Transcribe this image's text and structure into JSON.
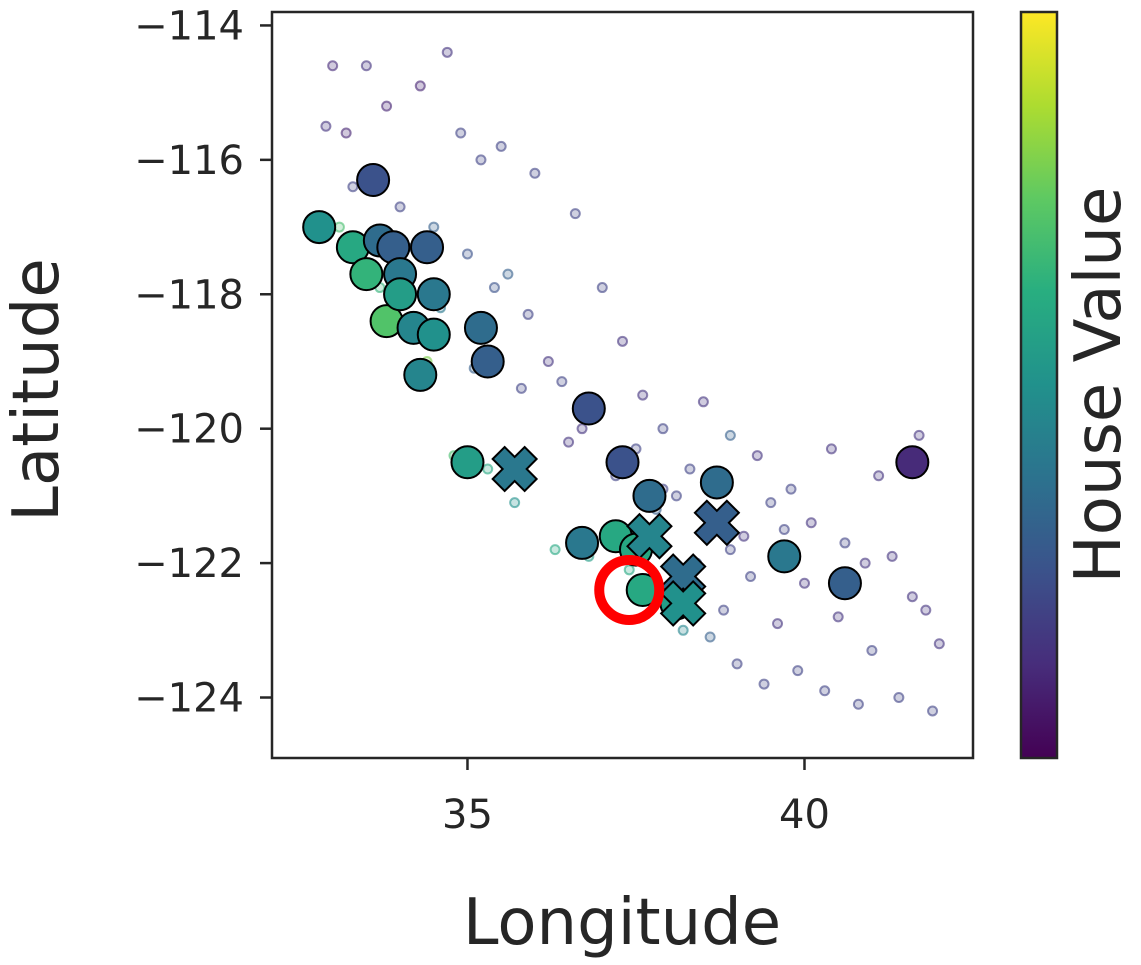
{
  "chart_data": {
    "type": "scatter",
    "title": "",
    "xlabel": "Longitude",
    "ylabel": "Latitude",
    "xlim": [
      32.1,
      42.5
    ],
    "ylim": [
      -124.9,
      -113.8
    ],
    "xticks": [
      35,
      40
    ],
    "xtick_labels": [
      "35",
      "40"
    ],
    "yticks": [
      -114,
      -116,
      -118,
      -120,
      -122,
      -124
    ],
    "ytick_labels": [
      "−114",
      "−116",
      "−118",
      "−120",
      "−122",
      "−124"
    ],
    "grid": false,
    "colorbar": {
      "label": "House Value",
      "colormap": "viridis",
      "stops": [
        "#440154",
        "#472d7b",
        "#3b528b",
        "#2c728e",
        "#21918c",
        "#28ae80",
        "#5ec962",
        "#addc30",
        "#fde725"
      ]
    },
    "series": [
      {
        "marker": "circle",
        "description": "faint background points (color = house value fraction)",
        "points": [
          {
            "x": 32.7,
            "y": -117.1,
            "v": 0.55
          },
          {
            "x": 32.9,
            "y": -115.5,
            "v": 0.15
          },
          {
            "x": 33.0,
            "y": -114.6,
            "v": 0.12
          },
          {
            "x": 33.1,
            "y": -117.0,
            "v": 0.7
          },
          {
            "x": 33.2,
            "y": -115.6,
            "v": 0.1
          },
          {
            "x": 33.3,
            "y": -116.4,
            "v": 0.2
          },
          {
            "x": 33.4,
            "y": -117.6,
            "v": 0.6
          },
          {
            "x": 33.5,
            "y": -114.6,
            "v": 0.15
          },
          {
            "x": 33.6,
            "y": -116.2,
            "v": 0.2
          },
          {
            "x": 33.7,
            "y": -117.9,
            "v": 0.65
          },
          {
            "x": 33.8,
            "y": -115.2,
            "v": 0.1
          },
          {
            "x": 33.9,
            "y": -118.1,
            "v": 0.75
          },
          {
            "x": 34.0,
            "y": -116.7,
            "v": 0.2
          },
          {
            "x": 34.1,
            "y": -117.3,
            "v": 0.3
          },
          {
            "x": 34.2,
            "y": -118.4,
            "v": 0.85
          },
          {
            "x": 34.3,
            "y": -114.9,
            "v": 0.1
          },
          {
            "x": 34.4,
            "y": -119.0,
            "v": 0.8
          },
          {
            "x": 34.5,
            "y": -117.0,
            "v": 0.3
          },
          {
            "x": 34.6,
            "y": -118.2,
            "v": 0.4
          },
          {
            "x": 34.7,
            "y": -114.4,
            "v": 0.15
          },
          {
            "x": 34.8,
            "y": -120.4,
            "v": 0.7
          },
          {
            "x": 34.9,
            "y": -115.6,
            "v": 0.2
          },
          {
            "x": 35.0,
            "y": -117.4,
            "v": 0.25
          },
          {
            "x": 35.1,
            "y": -119.1,
            "v": 0.3
          },
          {
            "x": 35.2,
            "y": -116.0,
            "v": 0.2
          },
          {
            "x": 35.3,
            "y": -120.6,
            "v": 0.6
          },
          {
            "x": 35.4,
            "y": -117.9,
            "v": 0.25
          },
          {
            "x": 35.5,
            "y": -115.8,
            "v": 0.2
          },
          {
            "x": 35.6,
            "y": -117.7,
            "v": 0.3
          },
          {
            "x": 35.7,
            "y": -121.1,
            "v": 0.5
          },
          {
            "x": 35.8,
            "y": -119.4,
            "v": 0.2
          },
          {
            "x": 36.0,
            "y": -116.2,
            "v": 0.2
          },
          {
            "x": 36.2,
            "y": -119.0,
            "v": 0.15
          },
          {
            "x": 36.3,
            "y": -121.8,
            "v": 0.6
          },
          {
            "x": 36.4,
            "y": -119.3,
            "v": 0.2
          },
          {
            "x": 36.6,
            "y": -116.8,
            "v": 0.2
          },
          {
            "x": 36.7,
            "y": -120.0,
            "v": 0.15
          },
          {
            "x": 36.8,
            "y": -121.9,
            "v": 0.55
          },
          {
            "x": 36.9,
            "y": -119.7,
            "v": 0.2
          },
          {
            "x": 37.0,
            "y": -117.9,
            "v": 0.2
          },
          {
            "x": 37.1,
            "y": -121.5,
            "v": 0.45
          },
          {
            "x": 37.2,
            "y": -120.7,
            "v": 0.2
          },
          {
            "x": 37.3,
            "y": -118.7,
            "v": 0.15
          },
          {
            "x": 37.4,
            "y": -122.1,
            "v": 0.6
          },
          {
            "x": 37.5,
            "y": -120.3,
            "v": 0.2
          },
          {
            "x": 37.6,
            "y": -119.5,
            "v": 0.15
          },
          {
            "x": 37.7,
            "y": -122.3,
            "v": 0.55
          },
          {
            "x": 37.8,
            "y": -121.2,
            "v": 0.3
          },
          {
            "x": 37.9,
            "y": -120.0,
            "v": 0.2
          },
          {
            "x": 38.0,
            "y": -122.6,
            "v": 0.5
          },
          {
            "x": 38.1,
            "y": -121.0,
            "v": 0.2
          },
          {
            "x": 38.2,
            "y": -123.0,
            "v": 0.45
          },
          {
            "x": 38.3,
            "y": -120.6,
            "v": 0.2
          },
          {
            "x": 38.4,
            "y": -122.0,
            "v": 0.25
          },
          {
            "x": 38.5,
            "y": -119.6,
            "v": 0.15
          },
          {
            "x": 38.6,
            "y": -123.1,
            "v": 0.3
          },
          {
            "x": 38.7,
            "y": -121.3,
            "v": 0.2
          },
          {
            "x": 38.8,
            "y": -122.7,
            "v": 0.2
          },
          {
            "x": 38.9,
            "y": -120.1,
            "v": 0.3
          },
          {
            "x": 39.0,
            "y": -123.5,
            "v": 0.2
          },
          {
            "x": 39.1,
            "y": -121.6,
            "v": 0.15
          },
          {
            "x": 39.2,
            "y": -122.2,
            "v": 0.2
          },
          {
            "x": 39.3,
            "y": -120.4,
            "v": 0.15
          },
          {
            "x": 39.4,
            "y": -123.8,
            "v": 0.2
          },
          {
            "x": 39.5,
            "y": -121.1,
            "v": 0.2
          },
          {
            "x": 39.6,
            "y": -122.9,
            "v": 0.15
          },
          {
            "x": 39.8,
            "y": -120.9,
            "v": 0.2
          },
          {
            "x": 39.9,
            "y": -123.6,
            "v": 0.2
          },
          {
            "x": 40.0,
            "y": -122.3,
            "v": 0.15
          },
          {
            "x": 40.1,
            "y": -121.4,
            "v": 0.15
          },
          {
            "x": 40.3,
            "y": -123.9,
            "v": 0.2
          },
          {
            "x": 40.4,
            "y": -120.3,
            "v": 0.15
          },
          {
            "x": 40.5,
            "y": -122.8,
            "v": 0.15
          },
          {
            "x": 40.6,
            "y": -121.7,
            "v": 0.2
          },
          {
            "x": 40.8,
            "y": -124.1,
            "v": 0.2
          },
          {
            "x": 40.9,
            "y": -122.0,
            "v": 0.15
          },
          {
            "x": 41.0,
            "y": -123.3,
            "v": 0.2
          },
          {
            "x": 41.1,
            "y": -120.7,
            "v": 0.15
          },
          {
            "x": 41.3,
            "y": -121.9,
            "v": 0.15
          },
          {
            "x": 41.4,
            "y": -124.0,
            "v": 0.2
          },
          {
            "x": 41.6,
            "y": -122.5,
            "v": 0.15
          },
          {
            "x": 41.7,
            "y": -120.1,
            "v": 0.15
          },
          {
            "x": 41.8,
            "y": -122.7,
            "v": 0.15
          },
          {
            "x": 41.9,
            "y": -124.2,
            "v": 0.2
          },
          {
            "x": 42.0,
            "y": -123.2,
            "v": 0.15
          },
          {
            "x": 37.9,
            "y": -120.9,
            "v": 0.2
          },
          {
            "x": 36.5,
            "y": -120.2,
            "v": 0.15
          },
          {
            "x": 35.9,
            "y": -118.3,
            "v": 0.2
          },
          {
            "x": 38.9,
            "y": -121.8,
            "v": 0.2
          },
          {
            "x": 39.7,
            "y": -121.5,
            "v": 0.2
          }
        ]
      },
      {
        "marker": "circle-large",
        "description": "highlighted samples",
        "points": [
          {
            "x": 32.8,
            "y": -117.0,
            "v": 0.5
          },
          {
            "x": 33.3,
            "y": -117.3,
            "v": 0.6
          },
          {
            "x": 33.5,
            "y": -117.7,
            "v": 0.65
          },
          {
            "x": 33.6,
            "y": -116.3,
            "v": 0.25
          },
          {
            "x": 33.7,
            "y": -117.2,
            "v": 0.35
          },
          {
            "x": 33.8,
            "y": -118.4,
            "v": 0.72
          },
          {
            "x": 33.9,
            "y": -117.3,
            "v": 0.3
          },
          {
            "x": 34.0,
            "y": -117.7,
            "v": 0.4
          },
          {
            "x": 34.0,
            "y": -118.0,
            "v": 0.55
          },
          {
            "x": 34.2,
            "y": -118.5,
            "v": 0.45
          },
          {
            "x": 34.3,
            "y": -119.2,
            "v": 0.45
          },
          {
            "x": 34.4,
            "y": -117.3,
            "v": 0.3
          },
          {
            "x": 34.5,
            "y": -118.6,
            "v": 0.5
          },
          {
            "x": 34.5,
            "y": -118.0,
            "v": 0.4
          },
          {
            "x": 35.0,
            "y": -120.5,
            "v": 0.55
          },
          {
            "x": 35.2,
            "y": -118.5,
            "v": 0.35
          },
          {
            "x": 35.3,
            "y": -119.0,
            "v": 0.3
          },
          {
            "x": 36.7,
            "y": -121.7,
            "v": 0.4
          },
          {
            "x": 36.8,
            "y": -119.7,
            "v": 0.25
          },
          {
            "x": 37.2,
            "y": -121.6,
            "v": 0.6
          },
          {
            "x": 37.3,
            "y": -120.5,
            "v": 0.25
          },
          {
            "x": 37.5,
            "y": -121.8,
            "v": 0.6
          },
          {
            "x": 37.6,
            "y": -122.4,
            "v": 0.6
          },
          {
            "x": 37.7,
            "y": -121.0,
            "v": 0.35
          },
          {
            "x": 38.1,
            "y": -122.6,
            "v": 0.55
          },
          {
            "x": 38.7,
            "y": -120.8,
            "v": 0.35
          },
          {
            "x": 39.7,
            "y": -121.9,
            "v": 0.4
          },
          {
            "x": 40.6,
            "y": -122.3,
            "v": 0.3
          },
          {
            "x": 41.6,
            "y": -120.5,
            "v": 0.12
          }
        ]
      },
      {
        "marker": "x",
        "description": "cross markers",
        "points": [
          {
            "x": 35.7,
            "y": -120.6,
            "v": 0.4
          },
          {
            "x": 37.7,
            "y": -121.6,
            "v": 0.45
          },
          {
            "x": 38.2,
            "y": -122.2,
            "v": 0.35
          },
          {
            "x": 38.7,
            "y": -121.4,
            "v": 0.3
          },
          {
            "x": 38.2,
            "y": -122.6,
            "v": 0.5
          }
        ]
      },
      {
        "marker": "ring",
        "description": "red ring highlight",
        "color": "#ff0000",
        "points": [
          {
            "x": 37.4,
            "y": -122.4
          }
        ]
      }
    ]
  }
}
